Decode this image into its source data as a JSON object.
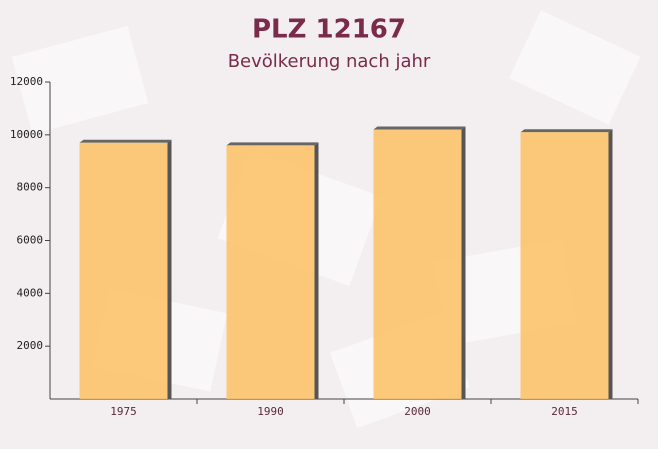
{
  "chart_data": {
    "type": "bar",
    "title": "PLZ 12167",
    "subtitle": "Bevölkerung nach jahr",
    "categories": [
      "1975",
      "1990",
      "2000",
      "2015"
    ],
    "values": [
      9700,
      9600,
      10200,
      10100
    ],
    "color": "#fbc36a",
    "ylim": [
      0,
      12000
    ],
    "yticks": [
      2000,
      4000,
      6000,
      8000,
      10000,
      12000
    ]
  }
}
